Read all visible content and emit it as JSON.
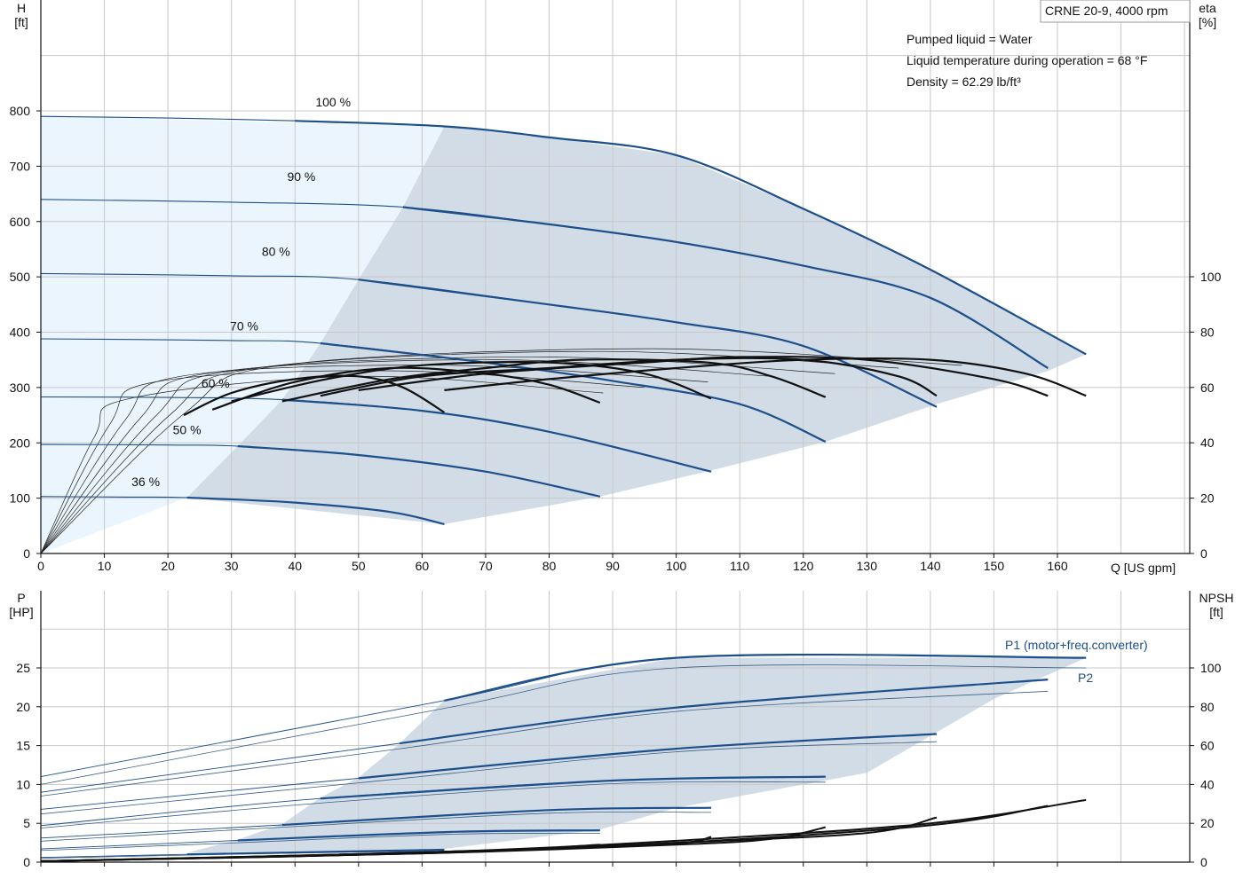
{
  "colors": {
    "curve": "#1d4f8b",
    "eta": "#111111",
    "region_light": "#ebf5fd",
    "region_dark": "#d1dce7",
    "grid": "#c8c8c8"
  },
  "top": {
    "ylabel": [
      "H",
      "[ft]"
    ],
    "y2label": [
      "eta",
      "[%]"
    ],
    "xlabel": "Q [US gpm]",
    "title_box": "CRNE 20-9, 4000 rpm",
    "info": [
      "Pumped liquid = Water",
      "Liquid temperature during operation = 68 °F",
      "Density = 62.29 lb/ft³"
    ]
  },
  "bottom": {
    "ylabel": [
      "P",
      "[HP]"
    ],
    "y2label": [
      "NPSH",
      "[ft]"
    ],
    "legend": [
      "P1 (motor+freq.converter)",
      "P2"
    ]
  },
  "chart_data": [
    {
      "type": "line",
      "name": "head-efficiency",
      "xlabel": "Q [US gpm]",
      "ylabel": "H [ft]",
      "y2label": "eta [%]",
      "xlim": [
        0,
        180
      ],
      "ylim": [
        0,
        800
      ],
      "y2lim": [
        0,
        100
      ],
      "xticks": [
        0,
        10,
        20,
        30,
        40,
        50,
        60,
        70,
        80,
        90,
        100,
        110,
        120,
        130,
        140,
        150,
        160
      ],
      "yticks": [
        0,
        100,
        200,
        300,
        400,
        500,
        600,
        700,
        800
      ],
      "y2ticks": [
        0,
        20,
        40,
        60,
        80,
        100
      ],
      "grid": true,
      "speed_labels": [
        {
          "label": "100 %",
          "x": 46,
          "y": 808
        },
        {
          "label": "90 %",
          "x": 41,
          "y": 673
        },
        {
          "label": "80 %",
          "x": 37,
          "y": 538
        },
        {
          "label": "70 %",
          "x": 32,
          "y": 403
        },
        {
          "label": "60 %",
          "x": 27.5,
          "y": 300
        },
        {
          "label": "50 %",
          "x": 23,
          "y": 216
        },
        {
          "label": "36 %",
          "x": 16.5,
          "y": 122
        }
      ],
      "head_curves": [
        {
          "speed": 100,
          "points": [
            [
              0,
              790
            ],
            [
              20,
              787
            ],
            [
              40,
              782
            ],
            [
              63.5,
              772
            ],
            [
              80,
              752
            ],
            [
              100,
              720
            ],
            [
              120,
              623
            ],
            [
              140,
              513
            ],
            [
              164.5,
              360
            ]
          ]
        },
        {
          "speed": 90,
          "points": [
            [
              0,
              640
            ],
            [
              30,
              635
            ],
            [
              57,
              626
            ],
            [
              80,
              595
            ],
            [
              100,
              563
            ],
            [
              120,
              520
            ],
            [
              140,
              462
            ],
            [
              158.5,
              335
            ]
          ]
        },
        {
          "speed": 80,
          "points": [
            [
              0,
              506
            ],
            [
              30,
              502
            ],
            [
              50,
              495
            ],
            [
              80,
              450
            ],
            [
              100,
              418
            ],
            [
              120,
              375
            ],
            [
              141,
              265
            ]
          ]
        },
        {
          "speed": 70,
          "points": [
            [
              0,
              388
            ],
            [
              30,
              385
            ],
            [
              44,
              380
            ],
            [
              70,
              345
            ],
            [
              90,
              312
            ],
            [
              110,
              270
            ],
            [
              123.5,
              202
            ]
          ]
        },
        {
          "speed": 60,
          "points": [
            [
              0,
              283
            ],
            [
              20,
              282
            ],
            [
              38,
              278
            ],
            [
              60,
              258
            ],
            [
              80,
              220
            ],
            [
              105.5,
              148
            ]
          ]
        },
        {
          "speed": 50,
          "points": [
            [
              0,
              197
            ],
            [
              20,
              196
            ],
            [
              31,
              194
            ],
            [
              50,
              178
            ],
            [
              70,
              148
            ],
            [
              88,
              103
            ]
          ]
        },
        {
          "speed": 36,
          "points": [
            [
              0,
              103
            ],
            [
              14,
              102
            ],
            [
              23,
              101
            ],
            [
              40,
              92
            ],
            [
              55,
              75
            ],
            [
              63.5,
              53
            ]
          ]
        }
      ],
      "eta_curves": [
        {
          "points": [
            [
              22.5,
              50
            ],
            [
              30,
              58
            ],
            [
              40,
              63
            ],
            [
              50,
              64
            ],
            [
              57,
              60
            ],
            [
              63.5,
              51
            ]
          ]
        },
        {
          "points": [
            [
              27,
              52
            ],
            [
              40,
              62
            ],
            [
              55,
              67
            ],
            [
              70,
              65
            ],
            [
              80,
              61
            ],
            [
              88,
              54.5
            ]
          ]
        },
        {
          "points": [
            [
              30,
              55
            ],
            [
              45,
              63
            ],
            [
              60,
              68
            ],
            [
              80,
              69
            ],
            [
              95,
              65
            ],
            [
              105.5,
              56
            ]
          ]
        },
        {
          "points": [
            [
              38,
              55
            ],
            [
              55,
              63
            ],
            [
              70,
              67
            ],
            [
              85,
              70
            ],
            [
              105,
              69
            ],
            [
              115,
              64
            ],
            [
              123.5,
              56.5
            ]
          ]
        },
        {
          "points": [
            [
              44,
              57
            ],
            [
              60,
              64
            ],
            [
              80,
              67
            ],
            [
              100,
              70
            ],
            [
              120,
              70
            ],
            [
              135,
              64
            ],
            [
              141,
              57
            ]
          ]
        },
        {
          "points": [
            [
              50,
              59
            ],
            [
              70,
              65
            ],
            [
              95,
              69
            ],
            [
              110,
              71
            ],
            [
              130,
              70
            ],
            [
              150,
              63
            ],
            [
              158.5,
              57
            ]
          ]
        },
        {
          "points": [
            [
              63.5,
              59
            ],
            [
              80,
              63
            ],
            [
              100,
              67
            ],
            [
              120,
              70
            ],
            [
              140,
              70
            ],
            [
              155,
              65
            ],
            [
              164.5,
              57
            ]
          ]
        }
      ]
    },
    {
      "type": "line",
      "name": "power-npsh",
      "ylabel": "P [HP]",
      "y2label": "NPSH [ft]",
      "xlim": [
        0,
        180
      ],
      "ylim": [
        0,
        30
      ],
      "y2lim": [
        0,
        120
      ],
      "yticks": [
        0,
        5,
        10,
        15,
        20,
        25
      ],
      "y2ticks": [
        0,
        20,
        40,
        60,
        80,
        100
      ],
      "grid": true,
      "series": [
        {
          "name": "P1 (motor+freq.converter)",
          "points": [
            [
              0,
              11
            ],
            [
              63.5,
              20.8
            ],
            [
              100,
              26.3
            ],
            [
              164.5,
              26.3
            ]
          ]
        },
        {
          "name": "P2",
          "points": [
            [
              0,
              9.8
            ],
            [
              56.5,
              15.2
            ],
            [
              100,
              20
            ],
            [
              158.5,
              23.5
            ]
          ]
        }
      ],
      "p1_reduced": [
        {
          "points": [
            [
              0,
              11
            ],
            [
              63.5,
              20.8
            ],
            [
              100,
              26.3
            ],
            [
              164.5,
              26.3
            ]
          ]
        },
        {
          "points": [
            [
              0,
              9
            ],
            [
              56.5,
              15.3
            ],
            [
              100,
              19.9
            ],
            [
              158.5,
              23.5
            ]
          ]
        },
        {
          "points": [
            [
              0,
              6.8
            ],
            [
              50,
              10.8
            ],
            [
              100,
              14.6
            ],
            [
              141,
              16.5
            ]
          ]
        },
        {
          "points": [
            [
              0,
              4.7
            ],
            [
              44,
              8.2
            ],
            [
              90,
              10.5
            ],
            [
              123.5,
              11
            ]
          ]
        },
        {
          "points": [
            [
              0,
              3.1
            ],
            [
              38,
              4.8
            ],
            [
              80,
              6.7
            ],
            [
              105.5,
              7
            ]
          ]
        },
        {
          "points": [
            [
              0,
              1.7
            ],
            [
              31,
              2.8
            ],
            [
              65,
              3.9
            ],
            [
              88,
              4.1
            ]
          ]
        },
        {
          "points": [
            [
              0,
              0.6
            ],
            [
              23,
              1
            ],
            [
              50,
              1.4
            ],
            [
              63.5,
              1.6
            ]
          ]
        }
      ],
      "p2_reduced": [
        {
          "points": [
            [
              0,
              10
            ],
            [
              63.5,
              19.8
            ],
            [
              100,
              25
            ],
            [
              164.5,
              25
            ]
          ]
        },
        {
          "points": [
            [
              0,
              8.5
            ],
            [
              56.5,
              14.6
            ],
            [
              100,
              19.4
            ],
            [
              158.5,
              22
            ]
          ]
        },
        {
          "points": [
            [
              0,
              6.2
            ],
            [
              50,
              10.2
            ],
            [
              100,
              14.2
            ],
            [
              141,
              15.5
            ]
          ]
        },
        {
          "points": [
            [
              0,
              4.4
            ],
            [
              44,
              7.6
            ],
            [
              90,
              10.1
            ],
            [
              123.5,
              10.3
            ]
          ]
        },
        {
          "points": [
            [
              0,
              2.7
            ],
            [
              38,
              4.5
            ],
            [
              80,
              6.3
            ],
            [
              105.5,
              6.4
            ]
          ]
        },
        {
          "points": [
            [
              0,
              1.5
            ],
            [
              31,
              2.5
            ],
            [
              65,
              3.6
            ],
            [
              88,
              3.7
            ]
          ]
        },
        {
          "points": [
            [
              0,
              0.5
            ],
            [
              23,
              0.9
            ],
            [
              50,
              1.3
            ],
            [
              63.5,
              1.4
            ]
          ]
        }
      ],
      "npsh_curves": [
        {
          "points": [
            [
              0,
              0.5
            ],
            [
              60,
              5
            ],
            [
              100,
              11
            ],
            [
              140,
              20
            ],
            [
              164.5,
              32
            ]
          ]
        },
        {
          "points": [
            [
              0,
              0.5
            ],
            [
              60,
              5
            ],
            [
              100,
              10
            ],
            [
              140,
              19
            ],
            [
              158.5,
              29
            ]
          ]
        },
        {
          "points": [
            [
              0,
              0.5
            ],
            [
              60,
              4.5
            ],
            [
              100,
              10
            ],
            [
              130,
              15
            ],
            [
              141,
              23
            ]
          ]
        },
        {
          "points": [
            [
              0,
              0.5
            ],
            [
              60,
              4.5
            ],
            [
              100,
              9
            ],
            [
              115,
              12
            ],
            [
              123.5,
              18
            ]
          ]
        },
        {
          "points": [
            [
              0,
              0.5
            ],
            [
              50,
              4
            ],
            [
              80,
              7
            ],
            [
              100,
              9.5
            ],
            [
              105.5,
              13
            ]
          ]
        },
        {
          "points": [
            [
              0,
              0.5
            ],
            [
              40,
              3
            ],
            [
              70,
              5.5
            ],
            [
              88,
              9
            ]
          ]
        }
      ]
    }
  ]
}
